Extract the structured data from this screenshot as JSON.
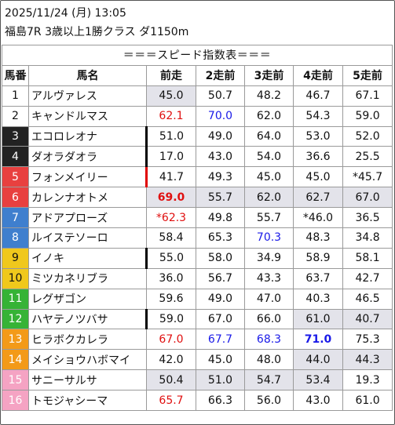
{
  "header": {
    "datetime": "2025/11/24 (月) 13:05",
    "race": "福島7R 3歳以上1勝クラス ダ1150m"
  },
  "table": {
    "title": "＝＝＝スピード指数表＝＝＝",
    "columns": [
      "馬番",
      "馬名",
      "前走",
      "2走前",
      "3走前",
      "4走前",
      "5走前"
    ],
    "frame_colors": {
      "1": "#ffffff",
      "2": "#ffffff",
      "3": "#222222",
      "4": "#222222",
      "5": "#e8403f",
      "6": "#e8403f",
      "7": "#3f7fce",
      "8": "#3f7fce",
      "9": "#f0c81c",
      "10": "#f0c81c",
      "11": "#36b336",
      "12": "#36b336",
      "13": "#f39a18",
      "14": "#f39a18",
      "15": "#f5a3c3",
      "16": "#f5a3c3"
    },
    "rows": [
      {
        "num": "1",
        "name": "アルヴァレス",
        "v": [
          "45.0",
          "50.7",
          "48.2",
          "46.7",
          "67.1"
        ]
      },
      {
        "num": "2",
        "name": "キャンドルマス",
        "v": [
          "62.1",
          "70.0",
          "62.0",
          "54.3",
          "59.0"
        ]
      },
      {
        "num": "3",
        "name": "エコロレオナ",
        "v": [
          "51.0",
          "49.0",
          "64.0",
          "53.0",
          "52.0"
        ]
      },
      {
        "num": "4",
        "name": "ダオラダオラ",
        "v": [
          "17.0",
          "43.0",
          "54.0",
          "36.6",
          "25.5"
        ]
      },
      {
        "num": "5",
        "name": "フォンメイリー",
        "v": [
          "41.7",
          "49.3",
          "45.0",
          "45.0",
          "*45.7"
        ]
      },
      {
        "num": "6",
        "name": "カレンナオトメ",
        "v": [
          "69.0",
          "55.7",
          "62.0",
          "62.7",
          "67.0"
        ]
      },
      {
        "num": "7",
        "name": "アドアプローズ",
        "v": [
          "*62.3",
          "49.8",
          "55.7",
          "*46.0",
          "36.5"
        ]
      },
      {
        "num": "8",
        "name": "ルイステソーロ",
        "v": [
          "58.4",
          "65.3",
          "70.3",
          "48.3",
          "34.8"
        ]
      },
      {
        "num": "9",
        "name": "イノキ",
        "v": [
          "55.0",
          "58.0",
          "34.9",
          "58.9",
          "58.1"
        ]
      },
      {
        "num": "10",
        "name": "ミツカネリブラ",
        "v": [
          "36.0",
          "56.7",
          "43.3",
          "63.7",
          "42.7"
        ]
      },
      {
        "num": "11",
        "name": "レグザゴン",
        "v": [
          "59.6",
          "49.0",
          "47.0",
          "40.3",
          "46.5"
        ]
      },
      {
        "num": "12",
        "name": "ハヤテノツバサ",
        "v": [
          "59.0",
          "67.0",
          "66.0",
          "61.0",
          "40.7"
        ]
      },
      {
        "num": "13",
        "name": "ヒラボクカレラ",
        "v": [
          "67.0",
          "67.7",
          "68.3",
          "71.0",
          "75.3"
        ]
      },
      {
        "num": "14",
        "name": "メイショウハボマイ",
        "v": [
          "42.0",
          "45.0",
          "48.0",
          "44.0",
          "44.3"
        ]
      },
      {
        "num": "15",
        "name": "サニーサルサ",
        "v": [
          "50.4",
          "51.0",
          "54.7",
          "53.4",
          "19.3"
        ]
      },
      {
        "num": "16",
        "name": "トモジャシーマ",
        "v": [
          "65.7",
          "66.3",
          "56.0",
          "43.0",
          "61.0"
        ]
      }
    ],
    "styles": {
      "1": [
        [
          "hl"
        ],
        [],
        [],
        [],
        []
      ],
      "2": [
        [
          "red"
        ],
        [
          "blue"
        ],
        [],
        [],
        []
      ],
      "3": [
        [
          "mark-black"
        ],
        [],
        [],
        [],
        []
      ],
      "4": [
        [
          "mark-black"
        ],
        [],
        [],
        [],
        []
      ],
      "5": [
        [
          "mark-red"
        ],
        [],
        [],
        [],
        []
      ],
      "6": [
        [
          "red",
          "bold",
          "hl"
        ],
        [
          "hl"
        ],
        [
          "hl"
        ],
        [
          "hl"
        ],
        [
          "hl"
        ]
      ],
      "7": [
        [
          "red"
        ],
        [],
        [],
        [],
        []
      ],
      "8": [
        [],
        [],
        [
          "blue"
        ],
        [],
        []
      ],
      "9": [
        [
          "mark-black"
        ],
        [],
        [],
        [],
        []
      ],
      "10": [
        [],
        [],
        [],
        [],
        []
      ],
      "11": [
        [],
        [],
        [],
        [],
        []
      ],
      "12": [
        [
          "mark-black"
        ],
        [],
        [],
        [
          "hl"
        ],
        [
          "hl"
        ]
      ],
      "13": [
        [
          "red"
        ],
        [
          "blue"
        ],
        [
          "blue"
        ],
        [
          "blue",
          "bold"
        ],
        []
      ],
      "14": [
        [],
        [],
        [],
        [
          "hl"
        ],
        [
          "hl"
        ]
      ],
      "15": [
        [
          "hl"
        ],
        [
          "hl"
        ],
        [
          "hl"
        ],
        [
          "hl"
        ],
        []
      ],
      "16": [
        [
          "red"
        ],
        [],
        [],
        [],
        []
      ]
    }
  }
}
